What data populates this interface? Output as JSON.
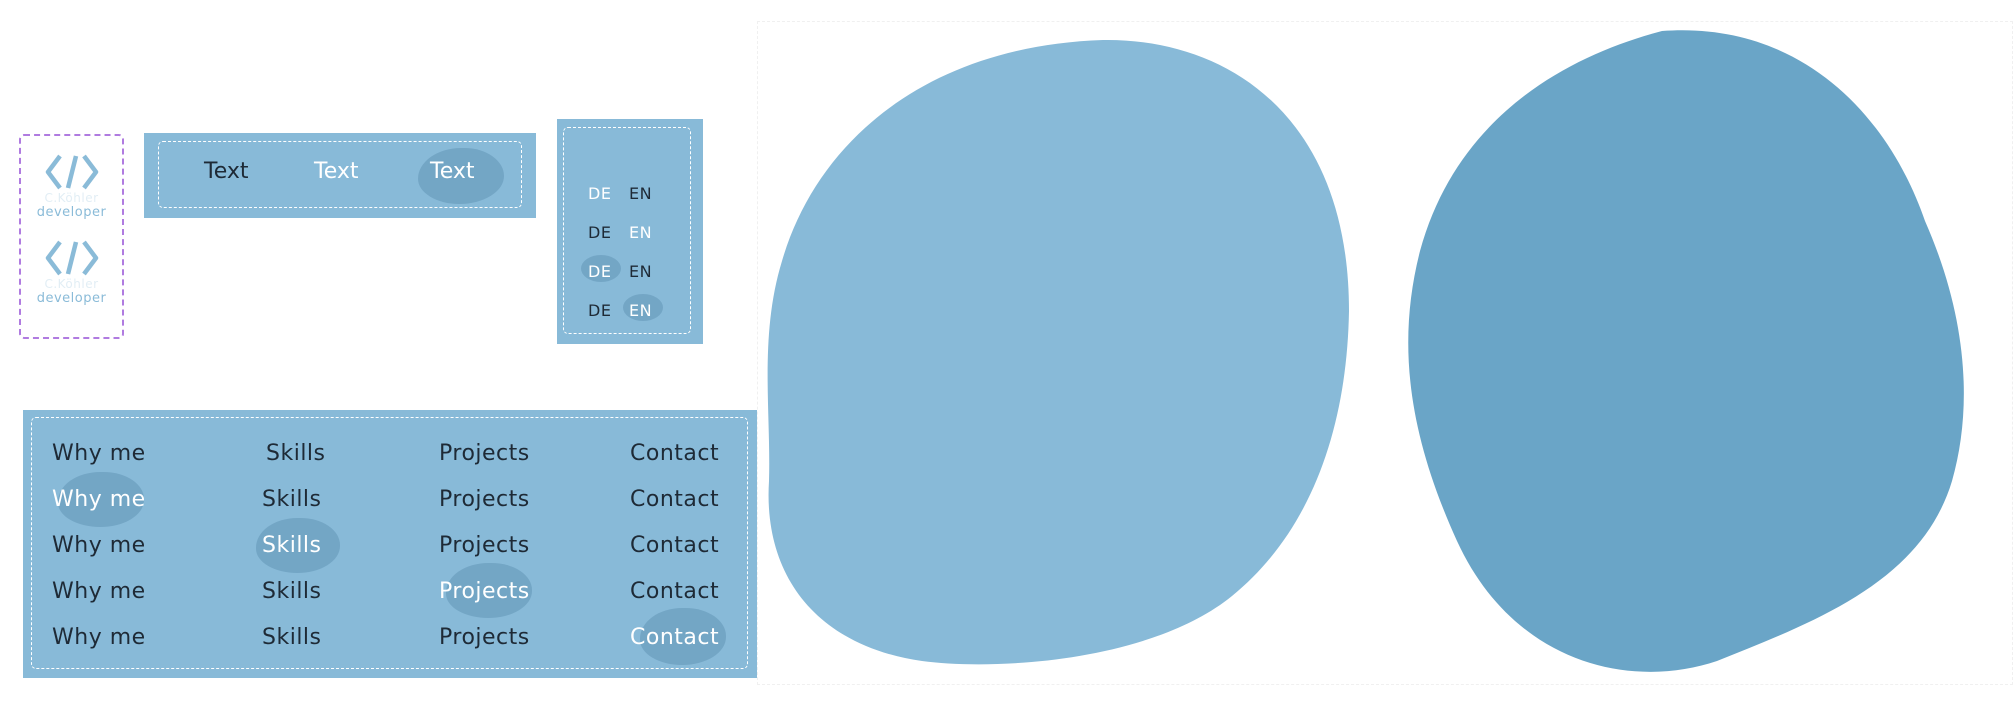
{
  "logo": {
    "variants": [
      {
        "name": "C.Köhler",
        "role": "developer"
      },
      {
        "name": "C.Köhler",
        "role": "developer"
      }
    ],
    "icon": "code-brackets-icon",
    "accent": "#8abbd8"
  },
  "text_buttons": {
    "items": [
      {
        "label": "Text",
        "state": "default"
      },
      {
        "label": "Text",
        "state": "hover"
      },
      {
        "label": "Text",
        "state": "active"
      }
    ]
  },
  "language_switch": {
    "rows": [
      {
        "de": "DE",
        "en": "EN"
      },
      {
        "de": "DE",
        "en": "EN"
      },
      {
        "de": "DE",
        "en": "EN"
      },
      {
        "de": "DE",
        "en": "EN"
      }
    ]
  },
  "navigation": {
    "rows": [
      [
        "Why me",
        "Skills",
        "Projects",
        "Contact"
      ],
      [
        "Why me",
        "Skills",
        "Projects",
        "Contact"
      ],
      [
        "Why me",
        "Skills",
        "Projects",
        "Contact"
      ],
      [
        "Why me",
        "Skills",
        "Projects",
        "Contact"
      ],
      [
        "Why me",
        "Skills",
        "Projects",
        "Contact"
      ]
    ]
  },
  "colors": {
    "panel": "#88bad8",
    "blob_light": "#88bad8",
    "blob_dark": "#6aa5c7",
    "highlight": "#6c9fbf",
    "text_dark": "#1e2a36"
  }
}
